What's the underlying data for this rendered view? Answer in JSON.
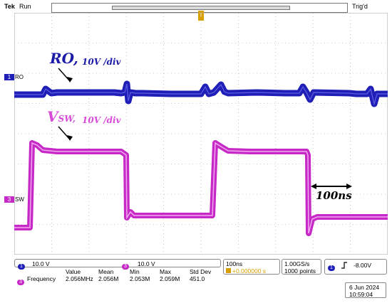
{
  "header": {
    "brand": "Tek",
    "run_state": "Run",
    "trigger_status": "Trig'd",
    "trigger_marker": "T"
  },
  "colors": {
    "ch1": "#1f1fb8",
    "ch3": "#c629c6",
    "grid": "#a0a0a0",
    "trigger": "#d7a000"
  },
  "channels": {
    "ch1": {
      "marker": "1",
      "label": "RO"
    },
    "ch3": {
      "marker": "3",
      "label": "SW"
    }
  },
  "annotations": {
    "ro_name": "RO,",
    "ro_scale": "10V /div",
    "sw_name": "V",
    "sw_sub": "SW,",
    "sw_scale": "10V /div",
    "period": "100ns"
  },
  "bottom": {
    "ch1_num": "1",
    "ch1_scale": "10.0 V",
    "ch3_num": "3",
    "ch3_scale": "10.0 V",
    "timebase": "100ns",
    "delay": "+0.000000 s",
    "delay_icon": "trigger-position-icon",
    "sample_rate": "1.00GS/s",
    "record_length": "1000 points",
    "trig_src": "1",
    "trig_edge_icon": "rising-edge-icon",
    "trig_level": "-8.00V",
    "date": "6 Jun 2024",
    "time": "10:59:04"
  },
  "measurement": {
    "channel": "3",
    "name": "Frequency",
    "headers": [
      "Value",
      "Mean",
      "Min",
      "Max",
      "Std Dev"
    ],
    "values": [
      "2.056MHz",
      "2.056M",
      "2.053M",
      "2.059M",
      "451.0"
    ]
  }
}
